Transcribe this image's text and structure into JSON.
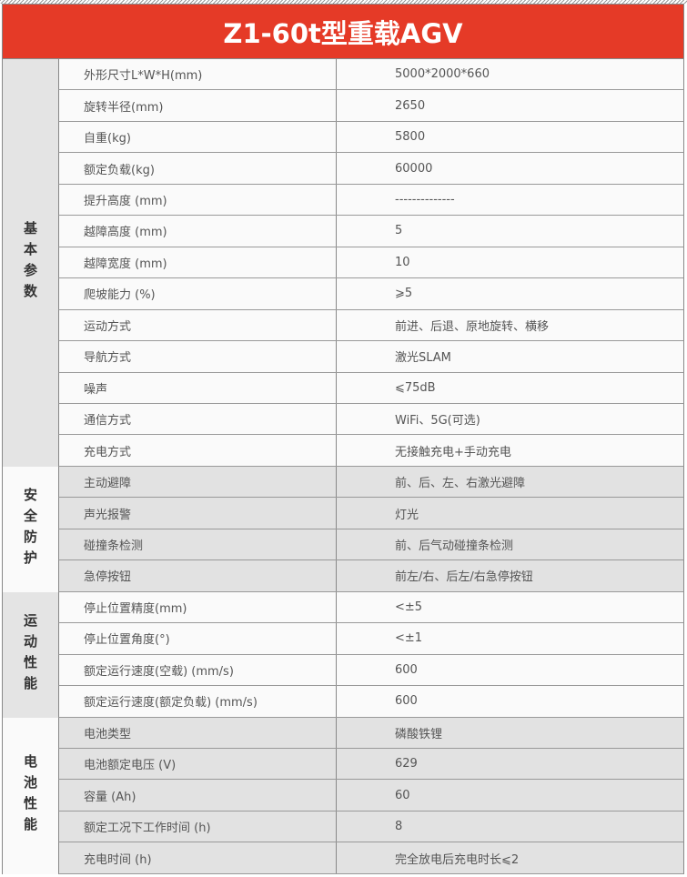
{
  "title": "Z1-60t型重载AGV",
  "groups": [
    {
      "label": "基本参数",
      "rows": [
        {
          "param": "外形尺寸L*W*H(mm)",
          "value": "5000*2000*660"
        },
        {
          "param": "旋转半径(mm)",
          "value": "2650"
        },
        {
          "param": "自重(kg)",
          "value": "5800"
        },
        {
          "param": "额定负载(kg)",
          "value": "60000"
        },
        {
          "param": "提升高度 (mm)",
          "value": "--------------"
        },
        {
          "param": "越障高度 (mm)",
          "value": "5"
        },
        {
          "param": "越障宽度 (mm)",
          "value": "10"
        },
        {
          "param": "爬坡能力 (%)",
          "value": "⩾5"
        },
        {
          "param": "运动方式",
          "value": "前进、后退、原地旋转、横移"
        },
        {
          "param": "导航方式",
          "value": "激光SLAM"
        },
        {
          "param": "噪声",
          "value": "⩽75dB"
        },
        {
          "param": "通信方式",
          "value": "WiFi、5G(可选)"
        },
        {
          "param": "充电方式",
          "value": "无接触充电+手动充电"
        }
      ]
    },
    {
      "label": "安全防护",
      "rows": [
        {
          "param": "主动避障",
          "value": "前、后、左、右激光避障"
        },
        {
          "param": "声光报警",
          "value": "灯光"
        },
        {
          "param": "碰撞条检测",
          "value": "前、后气动碰撞条检测"
        },
        {
          "param": "急停按钮",
          "value": "前左/右、后左/右急停按钮"
        }
      ]
    },
    {
      "label": "运动性能",
      "rows": [
        {
          "param": "停止位置精度(mm)",
          "value": "<±5"
        },
        {
          "param": "停止位置角度(°)",
          "value": "<±1"
        },
        {
          "param": "额定运行速度(空载) (mm/s)",
          "value": "600"
        },
        {
          "param": "额定运行速度(额定负载) (mm/s)",
          "value": "600"
        }
      ]
    },
    {
      "label": "电池性能",
      "rows": [
        {
          "param": "电池类型",
          "value": "磷酸铁锂"
        },
        {
          "param": "电池额定电压 (V)",
          "value": "629"
        },
        {
          "param": "容量 (Ah)",
          "value": "60"
        },
        {
          "param": "额定工况下工作时间 (h)",
          "value": "8"
        },
        {
          "param": "充电时间 (h)",
          "value": "完全放电后充电时长⩽2"
        }
      ]
    }
  ],
  "colors": {
    "header": "#e53a27",
    "gray_band": "#e2e2e2"
  }
}
